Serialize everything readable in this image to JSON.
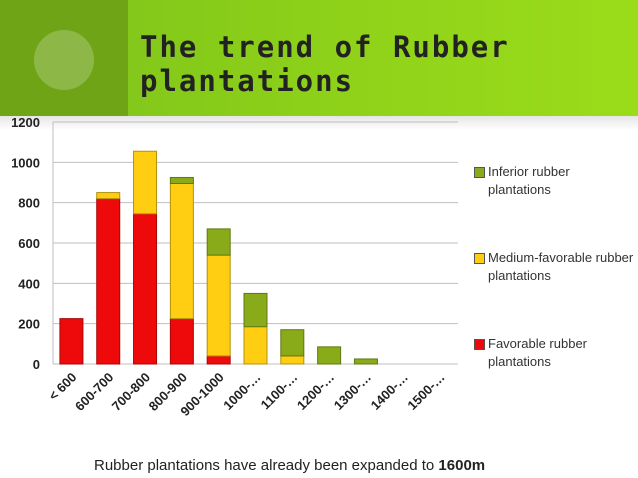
{
  "slide": {
    "title": "The trend of Rubber plantations",
    "caption_text": "Rubber plantations have already been expanded to ",
    "caption_bold": "1600m"
  },
  "colors": {
    "header_green": "#8fd219",
    "header_side": "#6ea415",
    "favorable": "#ee0a0a",
    "medium": "#ffcd12",
    "inferior": "#8aab19"
  },
  "chart_data": {
    "type": "bar",
    "stacked": true,
    "categories": [
      "< 600",
      "600-700",
      "700-800",
      "800-900",
      "900-1000",
      "1000-…",
      "1100-…",
      "1200-…",
      "1300-…",
      "1400-…",
      "1500-…"
    ],
    "series": [
      {
        "name": "Favorable rubber plantations",
        "color": "#ee0a0a",
        "values": [
          225,
          820,
          745,
          225,
          40,
          0,
          0,
          0,
          0,
          0,
          0
        ]
      },
      {
        "name": "Medium-favorable rubber plantations",
        "color": "#ffcd12",
        "values": [
          0,
          30,
          310,
          670,
          500,
          185,
          40,
          0,
          0,
          0,
          0
        ]
      },
      {
        "name": "Inferior rubber plantations",
        "color": "#8aab19",
        "values": [
          0,
          0,
          0,
          30,
          130,
          165,
          130,
          85,
          25,
          0,
          0
        ]
      }
    ],
    "ylim": [
      0,
      1200
    ],
    "yticks": [
      "0",
      "200",
      "400",
      "600",
      "800",
      "1000",
      "1200"
    ],
    "grid": true,
    "legend_position": "right"
  }
}
